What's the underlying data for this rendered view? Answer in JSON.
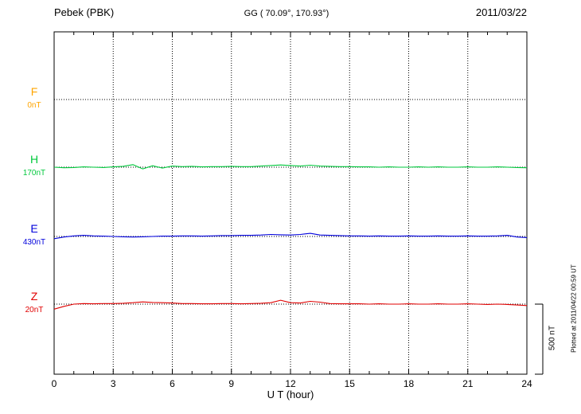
{
  "header": {
    "station": "Pebek (PBK)",
    "coords": "GG ( 70.09°, 170.93°)",
    "date": "2011/03/22"
  },
  "axis": {
    "xlabel": "U T (hour)",
    "xmin": 0,
    "xmax": 24,
    "xticks": [
      0,
      3,
      6,
      9,
      12,
      15,
      18,
      21,
      24
    ]
  },
  "components": [
    {
      "label": "F",
      "baseline_label": "0nT",
      "color": "#FFA500"
    },
    {
      "label": "H",
      "baseline_label": "170nT",
      "color": "#00C83C"
    },
    {
      "label": "E",
      "baseline_label": "430nT",
      "color": "#0000DC"
    },
    {
      "label": "Z",
      "baseline_label": "20nT",
      "color": "#E00000"
    }
  ],
  "scale_bar": {
    "label": "500 nT",
    "nT": 500
  },
  "footnote": "Plotted at 2011/04/22 00:59 UT",
  "chart_data": {
    "type": "line",
    "title": "Pebek (PBK) magnetogram",
    "subtitle": "GG ( 70.09°, 170.93°) 2011/03/22",
    "xlabel": "U T (hour)",
    "xlim": [
      0,
      24
    ],
    "xticks": [
      0,
      3,
      6,
      9,
      12,
      15,
      18,
      21,
      24
    ],
    "grid": "dotted-vertical-at-3h-and-dotted-baselines",
    "scale_bar_nT": 500,
    "x_start_hours": 0,
    "x_step_hours": 0.5,
    "series": [
      {
        "name": "F",
        "baseline_label_nT": 0,
        "color": "#FFA500",
        "visible": false,
        "offsets_nT": []
      },
      {
        "name": "H",
        "baseline_label_nT": 170,
        "color": "#00C83C",
        "visible": true,
        "offsets_nT": [
          0,
          -4,
          -2,
          2,
          0,
          -2,
          2,
          6,
          18,
          -12,
          10,
          -6,
          8,
          4,
          6,
          2,
          4,
          4,
          6,
          4,
          4,
          8,
          12,
          16,
          12,
          8,
          14,
          8,
          6,
          4,
          4,
          2,
          2,
          0,
          2,
          0,
          0,
          2,
          0,
          2,
          0,
          0,
          2,
          0,
          0,
          2,
          0,
          -2,
          -4
        ]
      },
      {
        "name": "E",
        "baseline_label_nT": 430,
        "color": "#0000DC",
        "visible": true,
        "offsets_nT": [
          -16,
          -4,
          4,
          8,
          4,
          2,
          0,
          -2,
          -4,
          -2,
          0,
          2,
          2,
          4,
          4,
          2,
          4,
          6,
          6,
          8,
          8,
          10,
          14,
          12,
          10,
          14,
          22,
          10,
          8,
          6,
          4,
          4,
          2,
          4,
          2,
          2,
          4,
          2,
          2,
          4,
          2,
          2,
          4,
          2,
          2,
          4,
          8,
          -4,
          -8
        ]
      },
      {
        "name": "Z",
        "baseline_label_nT": 20,
        "color": "#E00000",
        "visible": true,
        "offsets_nT": [
          -36,
          -16,
          0,
          4,
          2,
          4,
          4,
          6,
          10,
          16,
          12,
          10,
          8,
          4,
          4,
          2,
          2,
          4,
          4,
          2,
          4,
          6,
          10,
          28,
          10,
          8,
          20,
          14,
          4,
          2,
          2,
          2,
          0,
          2,
          0,
          0,
          2,
          0,
          0,
          2,
          0,
          0,
          2,
          0,
          -2,
          0,
          -2,
          -6,
          -10
        ]
      }
    ]
  }
}
